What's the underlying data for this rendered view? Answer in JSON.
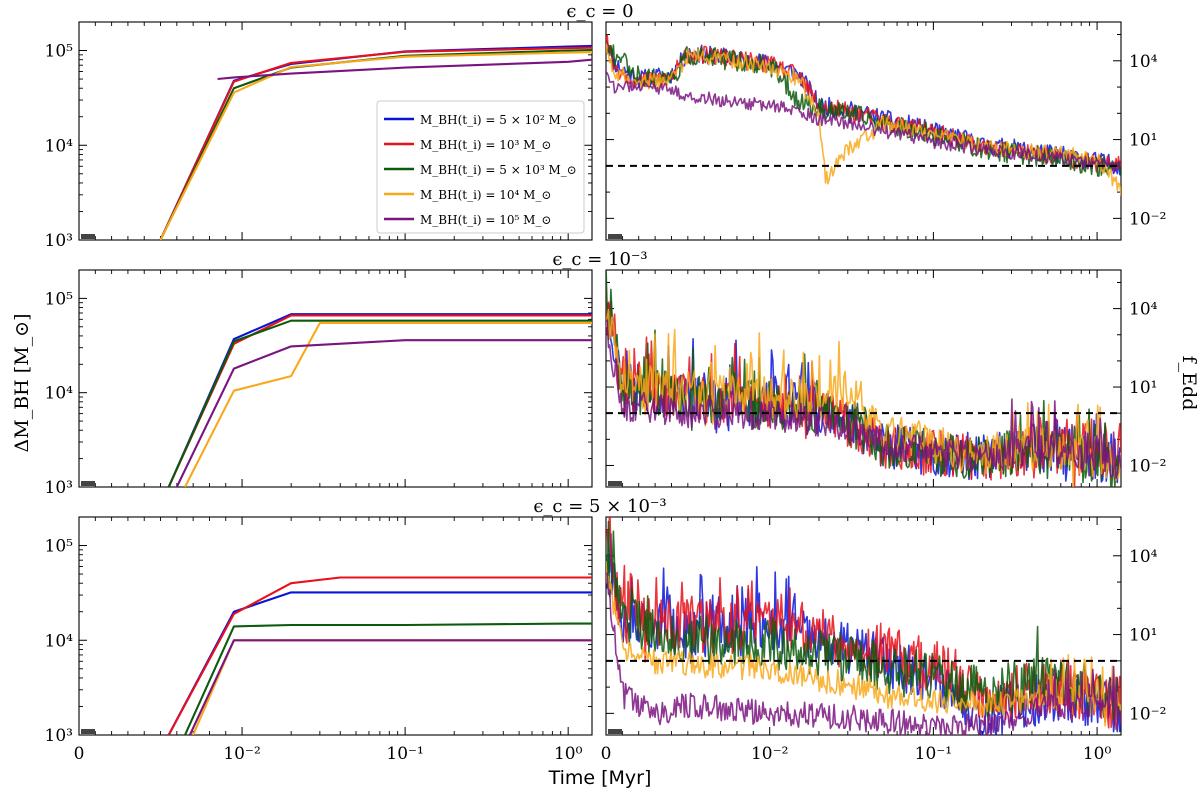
{
  "figure": {
    "xlabel": "Time [Myr]",
    "ylabel_left": "ΔM_BH [M_⊙]",
    "ylabel_right": "f_Edd"
  },
  "colors": {
    "blue": "#0a14d8",
    "red": "#e8101a",
    "green": "#0c5a0c",
    "orange": "#f8a81a",
    "purple": "#7a1480"
  },
  "legend": [
    {
      "label": "M_BH(t_i) = 5 × 10² M_⊙",
      "color": "#0a14d8"
    },
    {
      "label": "M_BH(t_i) = 10³ M_⊙",
      "color": "#e8101a"
    },
    {
      "label": "M_BH(t_i) = 5 × 10³ M_⊙",
      "color": "#0c5a0c"
    },
    {
      "label": "M_BH(t_i) = 10⁴ M_⊙",
      "color": "#f8a81a"
    },
    {
      "label": "M_BH(t_i) = 10⁵ M_⊙",
      "color": "#7a1480"
    }
  ],
  "chart_data": [
    {
      "type": "line",
      "panel": "left",
      "row_title": "ϵ_c = 0",
      "xscale": "symlog",
      "yscale": "log",
      "xlim": [
        0,
        1.4
      ],
      "ylim": [
        1000,
        200000
      ],
      "xticks": [
        "0",
        "10⁻²",
        "10⁻¹",
        "10⁰"
      ],
      "yticks": [
        "10³",
        "10⁴",
        "10⁵"
      ],
      "series": [
        {
          "color": "#0a14d8",
          "x": [
            0.005,
            0.0095,
            0.02,
            0.1,
            1.0,
            1.4
          ],
          "y": [
            1000,
            48000,
            72000,
            98000,
            110000,
            112000
          ]
        },
        {
          "color": "#e8101a",
          "x": [
            0.005,
            0.0095,
            0.02,
            0.1,
            1.0,
            1.4
          ],
          "y": [
            1000,
            47000,
            74000,
            97000,
            106000,
            107000
          ]
        },
        {
          "color": "#0c5a0c",
          "x": [
            0.005,
            0.0095,
            0.02,
            0.1,
            1.0,
            1.4
          ],
          "y": [
            1000,
            40000,
            66000,
            88000,
            100000,
            101000
          ]
        },
        {
          "color": "#f8a81a",
          "x": [
            0.005,
            0.0095,
            0.02,
            0.1,
            1.0,
            1.4
          ],
          "y": [
            1000,
            36000,
            67000,
            86000,
            95000,
            96000
          ]
        },
        {
          "color": "#7a1480",
          "x": [
            0.0085,
            0.0095,
            0.02,
            0.1,
            1.0,
            1.4
          ],
          "y": [
            50000,
            52000,
            57000,
            66000,
            76000,
            80000
          ]
        }
      ]
    },
    {
      "type": "line",
      "panel": "right",
      "row_title": "ϵ_c = 0",
      "xscale": "symlog",
      "yscale": "log",
      "xlim": [
        0,
        1.4
      ],
      "ylim": [
        0.0015,
        300000
      ],
      "xticks": [
        "0",
        "10⁻²",
        "10⁻¹",
        "10⁰"
      ],
      "yticks": [
        "10⁴",
        "10¹",
        "10⁻²"
      ],
      "eddington_line": 1,
      "noise_seed": 11,
      "series": [
        {
          "color": "#0a14d8",
          "x": [
            0,
            0.0005,
            0.002,
            0.004,
            0.005,
            0.007,
            0.01,
            0.015,
            0.02,
            0.05,
            0.1,
            0.2,
            0.5,
            1.0,
            1.4
          ],
          "y": [
            100000,
            8000,
            2000,
            3000,
            20000,
            15000,
            8000,
            3000,
            200,
            60,
            20,
            6,
            3,
            1.5,
            1
          ],
          "noise": 0.35
        },
        {
          "color": "#e8101a",
          "x": [
            0,
            0.0005,
            0.002,
            0.004,
            0.005,
            0.007,
            0.01,
            0.015,
            0.02,
            0.05,
            0.1,
            0.2,
            0.5,
            1.0,
            1.4
          ],
          "y": [
            80000,
            6000,
            1500,
            2500,
            18000,
            14000,
            7000,
            2500,
            180,
            50,
            18,
            5,
            2.5,
            1.2,
            1
          ],
          "noise": 0.35
        },
        {
          "color": "#0c5a0c",
          "x": [
            0,
            0.0005,
            0.001,
            0.002,
            0.004,
            0.005,
            0.007,
            0.01,
            0.015,
            0.02,
            0.05,
            0.1,
            0.2,
            0.5,
            1.0,
            1.4
          ],
          "y": [
            50000,
            15000,
            12000,
            2500,
            2000,
            16000,
            12000,
            6000,
            300,
            150,
            40,
            15,
            4,
            2,
            1,
            0.8
          ],
          "noise": 0.4
        },
        {
          "color": "#f8a81a",
          "x": [
            0,
            0.0005,
            0.002,
            0.004,
            0.005,
            0.007,
            0.01,
            0.015,
            0.02,
            0.022,
            0.03,
            0.05,
            0.1,
            0.2,
            0.5,
            1.0,
            1.4
          ],
          "y": [
            30000,
            4000,
            1500,
            2000,
            15000,
            12000,
            6000,
            2000,
            80,
            0.3,
            5,
            40,
            15,
            5,
            3,
            2,
            0.1
          ],
          "noise": 0.3
        },
        {
          "color": "#7a1480",
          "x": [
            0,
            0.0005,
            0.002,
            0.004,
            0.005,
            0.007,
            0.01,
            0.015,
            0.02,
            0.05,
            0.1,
            0.2,
            0.5,
            1.0,
            1.4
          ],
          "y": [
            3000,
            800,
            1200,
            700,
            500,
            300,
            200,
            120,
            60,
            20,
            8,
            4,
            2,
            1.2,
            1
          ],
          "noise": 0.25
        }
      ]
    },
    {
      "type": "line",
      "panel": "left",
      "row_title": "ϵ_c = 10⁻³",
      "xscale": "symlog",
      "yscale": "log",
      "xlim": [
        0,
        1.4
      ],
      "ylim": [
        1000,
        200000
      ],
      "xticks": [
        "0",
        "10⁻²",
        "10⁻¹",
        "10⁰"
      ],
      "yticks": [
        "10³",
        "10⁴",
        "10⁵"
      ],
      "series": [
        {
          "color": "#0a14d8",
          "x": [
            0.0055,
            0.0095,
            0.02,
            0.1,
            1.0,
            1.4
          ],
          "y": [
            1000,
            37000,
            68000,
            68000,
            68000,
            68000
          ]
        },
        {
          "color": "#e8101a",
          "x": [
            0.0055,
            0.0095,
            0.02,
            0.1,
            1.0,
            1.4
          ],
          "y": [
            1000,
            33000,
            66000,
            66000,
            66000,
            66000
          ]
        },
        {
          "color": "#0c5a0c",
          "x": [
            0.0055,
            0.0095,
            0.02,
            0.1,
            1.0,
            1.4
          ],
          "y": [
            1000,
            35000,
            58000,
            58000,
            58000,
            58000
          ]
        },
        {
          "color": "#f8a81a",
          "x": [
            0.0065,
            0.0095,
            0.02,
            0.03,
            0.1,
            1.0,
            1.4
          ],
          "y": [
            1000,
            10500,
            15000,
            55000,
            55000,
            55000,
            55000
          ]
        },
        {
          "color": "#7a1480",
          "x": [
            0.006,
            0.0095,
            0.02,
            0.1,
            1.0,
            1.4
          ],
          "y": [
            1000,
            18000,
            31000,
            36000,
            36000,
            36000
          ]
        }
      ]
    },
    {
      "type": "line",
      "panel": "right",
      "row_title": "ϵ_c = 10⁻³",
      "xscale": "symlog",
      "yscale": "log",
      "xlim": [
        0,
        1.4
      ],
      "ylim": [
        0.0015,
        300000
      ],
      "xticks": [
        "0",
        "10⁻²",
        "10⁻¹",
        "10⁰"
      ],
      "yticks": [
        "10⁴",
        "10¹",
        "10⁻²"
      ],
      "eddington_line": 1,
      "noise_seed": 23,
      "series": [
        {
          "color": "#0a14d8",
          "x": [
            0,
            0.001,
            0.005,
            0.01,
            0.02,
            0.03,
            0.05,
            0.1,
            0.2,
            0.4,
            1.0,
            1.4
          ],
          "y": [
            20000,
            10,
            5,
            3,
            1.5,
            0.5,
            0.05,
            0.03,
            0.02,
            0.05,
            0.02,
            0.01
          ],
          "noise": 0.9,
          "spikes": [
            0,
            0.02,
            0.3,
            1.4
          ]
        },
        {
          "color": "#e8101a",
          "x": [
            0,
            0.001,
            0.005,
            0.01,
            0.02,
            0.03,
            0.05,
            0.1,
            0.2,
            0.4,
            1.0,
            1.4
          ],
          "y": [
            15000,
            8,
            4,
            2,
            1.2,
            0.4,
            0.05,
            0.03,
            0.02,
            0.04,
            0.02,
            0.01
          ],
          "noise": 0.9,
          "spikes": [
            0,
            0.02,
            0.3,
            1.4
          ]
        },
        {
          "color": "#0c5a0c",
          "x": [
            0,
            0.001,
            0.005,
            0.01,
            0.02,
            0.03,
            0.05,
            0.1,
            0.2,
            0.4,
            1.0,
            1.4
          ],
          "y": [
            12000,
            8,
            4,
            2,
            1.3,
            0.5,
            0.06,
            0.03,
            0.02,
            0.04,
            0.02,
            0.008
          ],
          "noise": 0.9,
          "spikes": [
            0,
            0.02,
            0.3,
            1.4
          ]
        },
        {
          "color": "#f8a81a",
          "x": [
            0,
            0.001,
            0.005,
            0.01,
            0.02,
            0.03,
            0.05,
            0.1,
            0.2,
            0.4,
            1.0,
            1.4
          ],
          "y": [
            10000,
            10,
            6,
            4,
            3,
            8,
            0.2,
            0.05,
            0.03,
            0.05,
            0.02,
            0.01
          ],
          "noise": 0.8,
          "spikes": [
            0,
            0.03,
            0.3,
            1.4
          ]
        },
        {
          "color": "#7a1480",
          "x": [
            0,
            0.001,
            0.005,
            0.01,
            0.02,
            0.03,
            0.05,
            0.1,
            0.2,
            0.4,
            1.0,
            1.4
          ],
          "y": [
            2000,
            2,
            1,
            0.8,
            0.5,
            0.3,
            0.05,
            0.03,
            0.02,
            0.04,
            0.02,
            0.01
          ],
          "noise": 0.6,
          "spikes": [
            0.3,
            1.4
          ]
        }
      ]
    },
    {
      "type": "line",
      "panel": "left",
      "row_title": "ϵ_c = 5 × 10⁻³",
      "xscale": "symlog",
      "yscale": "log",
      "xlim": [
        0,
        1.4
      ],
      "ylim": [
        1000,
        200000
      ],
      "xticks": [
        "0",
        "10⁻²",
        "10⁻¹",
        "10⁰"
      ],
      "yticks": [
        "10³",
        "10⁴",
        "10⁵"
      ],
      "series": [
        {
          "color": "#0a14d8",
          "x": [
            0.0055,
            0.0095,
            0.02,
            0.1,
            1.0,
            1.4
          ],
          "y": [
            1000,
            20000,
            32000,
            32000,
            32000,
            32000
          ]
        },
        {
          "color": "#e8101a",
          "x": [
            0.0055,
            0.0095,
            0.02,
            0.04,
            0.1,
            1.0,
            1.4
          ],
          "y": [
            1000,
            19000,
            40000,
            46000,
            46000,
            46000,
            46000
          ]
        },
        {
          "color": "#0c5a0c",
          "x": [
            0.0065,
            0.0095,
            0.02,
            0.1,
            1.0,
            1.4
          ],
          "y": [
            1000,
            14000,
            14500,
            14500,
            15000,
            15000
          ]
        },
        {
          "color": "#f8a81a",
          "x": [
            0.007,
            0.0095,
            0.02,
            0.1,
            1.0,
            1.4
          ],
          "y": [
            1000,
            10000,
            10000,
            10000,
            10000,
            10000
          ]
        },
        {
          "color": "#7a1480",
          "x": [
            0.0068,
            0.0095,
            0.02,
            0.1,
            1.0,
            1.4
          ],
          "y": [
            1000,
            10000,
            10000,
            10000,
            10000,
            10000
          ]
        }
      ]
    },
    {
      "type": "line",
      "panel": "right",
      "row_title": "ϵ_c = 5 × 10⁻³",
      "xscale": "symlog",
      "yscale": "log",
      "xlim": [
        0,
        1.4
      ],
      "ylim": [
        0.0015,
        300000
      ],
      "xticks": [
        "0",
        "10⁻²",
        "10⁻¹",
        "10⁰"
      ],
      "yticks": [
        "10⁴",
        "10¹",
        "10⁻²"
      ],
      "eddington_line": 1,
      "noise_seed": 37,
      "series": [
        {
          "color": "#0a14d8",
          "x": [
            0,
            0.001,
            0.005,
            0.01,
            0.02,
            0.05,
            0.1,
            0.2,
            0.5,
            1.0,
            1.4
          ],
          "y": [
            20000,
            50,
            10,
            20,
            5,
            1,
            0.2,
            0.01,
            0.05,
            0.02,
            0.01
          ],
          "noise": 1.0,
          "spikes": [
            0,
            0.015
          ]
        },
        {
          "color": "#e8101a",
          "x": [
            0,
            0.001,
            0.005,
            0.01,
            0.02,
            0.05,
            0.1,
            0.2,
            0.5,
            1.0,
            1.4
          ],
          "y": [
            15000,
            40,
            20,
            30,
            10,
            2,
            0.5,
            0.05,
            0.1,
            0.05,
            0.02
          ],
          "noise": 1.1,
          "spikes": [
            0,
            0.02
          ]
        },
        {
          "color": "#0c5a0c",
          "x": [
            0,
            0.001,
            0.005,
            0.01,
            0.02,
            0.05,
            0.1,
            0.2,
            0.5,
            1.0,
            1.4
          ],
          "y": [
            8000,
            30,
            8,
            5,
            2,
            0.5,
            0.2,
            0.05,
            0.3,
            0.05,
            0.02
          ],
          "noise": 1.0,
          "spikes": [
            0,
            0.003,
            0.3,
            0.5
          ]
        },
        {
          "color": "#f8a81a",
          "x": [
            0,
            0.001,
            0.003,
            0.005,
            0.01,
            0.02,
            0.05,
            0.1,
            0.2,
            0.5,
            1.0,
            1.4
          ],
          "y": [
            5000,
            3,
            1,
            0.8,
            0.5,
            0.2,
            0.05,
            0.03,
            0.02,
            0.05,
            0.03,
            0.02
          ],
          "noise": 0.5,
          "spikes": [
            0.5,
            1.4
          ]
        },
        {
          "color": "#7a1480",
          "x": [
            0,
            0.001,
            0.003,
            0.005,
            0.01,
            0.02,
            0.05,
            0.1,
            0.2,
            0.5,
            1.0,
            1.4
          ],
          "y": [
            3000,
            0.05,
            0.01,
            0.02,
            0.01,
            0.008,
            0.005,
            0.003,
            0.003,
            0.02,
            0.02,
            0.01
          ],
          "noise": 0.5,
          "spikes": [
            0.5,
            1.4
          ]
        }
      ]
    }
  ]
}
